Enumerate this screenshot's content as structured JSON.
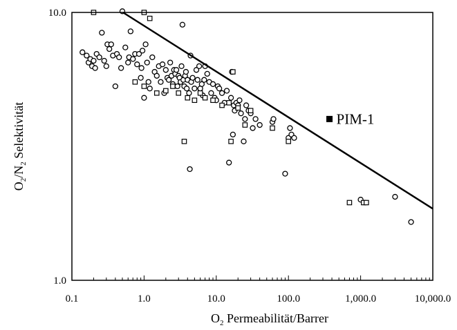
{
  "chart_data": {
    "type": "scatter",
    "title": "",
    "xlabel": {
      "prefix": "O",
      "sub": "2",
      "rest": "  Permeabilität/Barrer"
    },
    "ylabel": {
      "a": "O",
      "a_sub": "2",
      "mid": "/N",
      "b_sub": "2",
      "rest": "  Selektivität"
    },
    "x_scale": "log",
    "y_scale": "log",
    "xlim": [
      0.1,
      10000
    ],
    "ylim": [
      1,
      10
    ],
    "x_ticks": [
      0.1,
      1,
      10,
      100,
      1000,
      10000
    ],
    "x_tick_labels": [
      "0.1",
      "1.0",
      "10.0",
      "100.0",
      "1,000.0",
      "10,000.0"
    ],
    "y_ticks": [
      1,
      10
    ],
    "y_tick_labels": [
      "1.0",
      "10.0"
    ],
    "grid": false,
    "upper_bound": {
      "x": [
        0.51,
        10000
      ],
      "y": [
        10,
        1.85
      ]
    },
    "highlight": {
      "name": "PIM-1",
      "x": 370,
      "y": 4.0,
      "color": "#000000"
    },
    "series": [
      {
        "marker": "open-circle",
        "points": [
          [
            0.14,
            7.1
          ],
          [
            0.16,
            6.9
          ],
          [
            0.17,
            6.5
          ],
          [
            0.18,
            6.7
          ],
          [
            0.19,
            6.3
          ],
          [
            0.2,
            6.6
          ],
          [
            0.21,
            6.2
          ],
          [
            0.22,
            7.0
          ],
          [
            0.24,
            6.8
          ],
          [
            0.26,
            8.4
          ],
          [
            0.28,
            6.6
          ],
          [
            0.3,
            6.3
          ],
          [
            0.31,
            7.6
          ],
          [
            0.33,
            7.3
          ],
          [
            0.35,
            7.6
          ],
          [
            0.37,
            6.9
          ],
          [
            0.4,
            5.3
          ],
          [
            0.42,
            7.0
          ],
          [
            0.45,
            6.8
          ],
          [
            0.48,
            6.2
          ],
          [
            0.5,
            10.1
          ],
          [
            0.55,
            7.4
          ],
          [
            0.6,
            6.5
          ],
          [
            0.62,
            6.8
          ],
          [
            0.65,
            8.5
          ],
          [
            0.7,
            6.7
          ],
          [
            0.75,
            7.0
          ],
          [
            0.8,
            6.4
          ],
          [
            0.85,
            7.0
          ],
          [
            0.9,
            5.7
          ],
          [
            0.92,
            6.2
          ],
          [
            0.95,
            7.2
          ],
          [
            1.0,
            4.8
          ],
          [
            1.05,
            7.6
          ],
          [
            1.1,
            6.5
          ],
          [
            1.15,
            5.5
          ],
          [
            1.2,
            5.2
          ],
          [
            1.3,
            6.8
          ],
          [
            1.4,
            6.0
          ],
          [
            1.5,
            5.8
          ],
          [
            1.6,
            6.3
          ],
          [
            1.7,
            5.5
          ],
          [
            1.8,
            6.4
          ],
          [
            1.9,
            5.0
          ],
          [
            2.0,
            6.1
          ],
          [
            2.1,
            5.7
          ],
          [
            2.2,
            5.6
          ],
          [
            2.3,
            6.5
          ],
          [
            2.4,
            5.8
          ],
          [
            2.5,
            5.4
          ],
          [
            2.6,
            6.1
          ],
          [
            2.7,
            5.9
          ],
          [
            2.8,
            6.1
          ],
          [
            2.9,
            5.3
          ],
          [
            3.0,
            5.8
          ],
          [
            3.1,
            5.7
          ],
          [
            3.2,
            5.5
          ],
          [
            3.3,
            6.3
          ],
          [
            3.4,
            9.0
          ],
          [
            3.5,
            5.6
          ],
          [
            3.6,
            5.3
          ],
          [
            3.7,
            5.8
          ],
          [
            3.8,
            6.0
          ],
          [
            3.9,
            5.2
          ],
          [
            4.0,
            5.6
          ],
          [
            4.2,
            5.0
          ],
          [
            4.3,
            2.6
          ],
          [
            4.4,
            6.9
          ],
          [
            4.5,
            5.5
          ],
          [
            4.7,
            5.7
          ],
          [
            5.0,
            5.2
          ],
          [
            5.3,
            6.1
          ],
          [
            5.5,
            5.6
          ],
          [
            5.8,
            6.3
          ],
          [
            6.0,
            5.2
          ],
          [
            6.3,
            5.4
          ],
          [
            6.5,
            4.9
          ],
          [
            6.8,
            5.6
          ],
          [
            7.0,
            6.3
          ],
          [
            7.5,
            5.9
          ],
          [
            8.0,
            5.5
          ],
          [
            8.5,
            5.0
          ],
          [
            9.0,
            5.4
          ],
          [
            9.5,
            4.8
          ],
          [
            10,
            4.7
          ],
          [
            10.5,
            5.3
          ],
          [
            11,
            5.2
          ],
          [
            12,
            5.0
          ],
          [
            13,
            4.6
          ],
          [
            14,
            5.1
          ],
          [
            15,
            2.75
          ],
          [
            16,
            4.8
          ],
          [
            16.5,
            6.0
          ],
          [
            17,
            3.5
          ],
          [
            17.5,
            4.5
          ],
          [
            18,
            4.3
          ],
          [
            19,
            4.6
          ],
          [
            20,
            4.5
          ],
          [
            21,
            4.7
          ],
          [
            22,
            4.2
          ],
          [
            24,
            3.3
          ],
          [
            25,
            4.0
          ],
          [
            26,
            4.5
          ],
          [
            28,
            4.3
          ],
          [
            30,
            4.2
          ],
          [
            32,
            3.7
          ],
          [
            35,
            4.0
          ],
          [
            40,
            3.8
          ],
          [
            60,
            3.9
          ],
          [
            62,
            4.0
          ],
          [
            90,
            2.5
          ],
          [
            100,
            3.4
          ],
          [
            105,
            3.7
          ],
          [
            110,
            3.5
          ],
          [
            120,
            3.4
          ],
          [
            1000,
            2.0
          ],
          [
            3000,
            2.05
          ],
          [
            5000,
            1.65
          ]
        ]
      },
      {
        "marker": "open-square",
        "points": [
          [
            0.2,
            10.0
          ],
          [
            1.0,
            10.0
          ],
          [
            1.2,
            9.5
          ],
          [
            0.75,
            5.5
          ],
          [
            1.0,
            5.3
          ],
          [
            1.5,
            5.0
          ],
          [
            2.0,
            5.1
          ],
          [
            2.5,
            5.3
          ],
          [
            3.0,
            5.0
          ],
          [
            3.6,
            3.3
          ],
          [
            4.0,
            4.8
          ],
          [
            5.0,
            4.7
          ],
          [
            6.0,
            5.0
          ],
          [
            7.0,
            4.8
          ],
          [
            9.0,
            4.7
          ],
          [
            12,
            4.5
          ],
          [
            15,
            4.6
          ],
          [
            16,
            3.3
          ],
          [
            17,
            6.0
          ],
          [
            20,
            4.4
          ],
          [
            25,
            3.8
          ],
          [
            30,
            4.3
          ],
          [
            60,
            3.7
          ],
          [
            100,
            3.3
          ],
          [
            700,
            1.95
          ],
          [
            1100,
            1.95
          ],
          [
            1200,
            1.95
          ]
        ]
      }
    ]
  }
}
